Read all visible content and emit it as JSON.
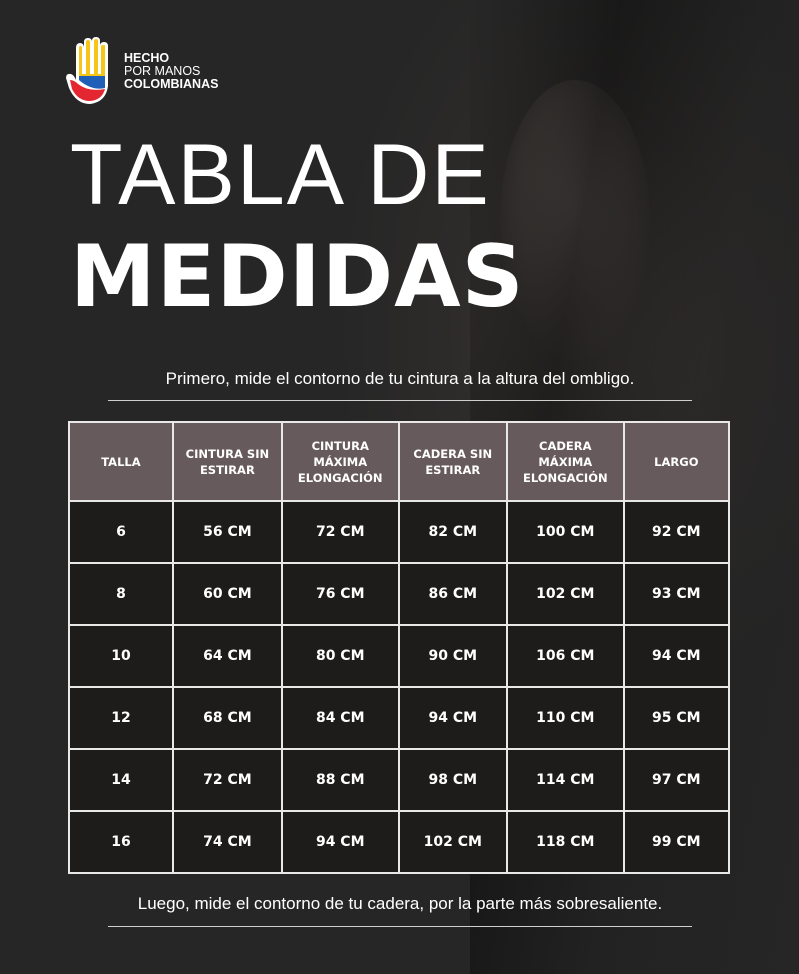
{
  "logo": {
    "line1": "HECHO",
    "line2": "POR MANOS",
    "line3": "COLOMBIANAS"
  },
  "title": {
    "line1": "TABLA DE",
    "line2": "MEDIDAS"
  },
  "instruction_top": "Primero, mide  el contorno de tu cintura a la altura del ombligo.",
  "instruction_bottom": "Luego, mide el contorno de tu cadera, por la parte más sobresaliente.",
  "table": {
    "headers": [
      "TALLA",
      "CINTURA SIN ESTIRAR",
      "CINTURA MÁXIMA ELONGACIÓN",
      "CADERA SIN ESTIRAR",
      "CADERA MÁXIMA ELONGACIÓN",
      "LARGO"
    ],
    "rows": [
      [
        "6",
        "56 CM",
        "72 CM",
        "82 CM",
        "100 CM",
        "92 CM"
      ],
      [
        "8",
        "60 CM",
        "76 CM",
        "86 CM",
        "102 CM",
        "93 CM"
      ],
      [
        "10",
        "64 CM",
        "80 CM",
        "90 CM",
        "106 CM",
        "94 CM"
      ],
      [
        "12",
        "68 CM",
        "84 CM",
        "94 CM",
        "110 CM",
        "95 CM"
      ],
      [
        "14",
        "72 CM",
        "88 CM",
        "98 CM",
        "114 CM",
        "97 CM"
      ],
      [
        "16",
        "74 CM",
        "94 CM",
        "102 CM",
        "118 CM",
        "99 CM"
      ]
    ]
  },
  "colors": {
    "header_bg": "#675a5c",
    "cell_bg": "#1e1c1b",
    "background": "#2a2a2a"
  }
}
